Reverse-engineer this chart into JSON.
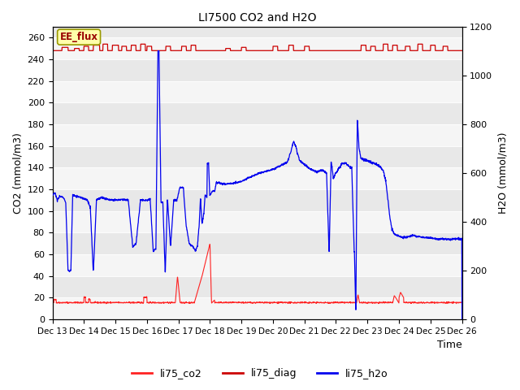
{
  "title": "LI7500 CO2 and H2O",
  "xlabel": "Time",
  "ylabel_left": "CO2 (mmol/m3)",
  "ylabel_right": "H2O (mmol/m3)",
  "ylim_left": [
    0,
    270
  ],
  "ylim_right": [
    0,
    1200
  ],
  "yticks_left": [
    0,
    20,
    40,
    60,
    80,
    100,
    120,
    140,
    160,
    180,
    200,
    220,
    240,
    260
  ],
  "yticks_right": [
    0,
    200,
    400,
    600,
    800,
    1000,
    1200
  ],
  "bg_color": "#e8e8e8",
  "stripe_color": "#f5f5f5",
  "co2_color": "#ff2222",
  "diag_color": "#cc0000",
  "h2o_color": "#0000ee",
  "annotation_text": "EE_flux",
  "annotation_bg": "#ffffaa",
  "annotation_border": "#999900",
  "legend_entries": [
    "li75_co2",
    "li75_diag",
    "li75_h2o"
  ],
  "legend_colors": [
    "#ff2222",
    "#cc0000",
    "#0000ee"
  ],
  "xtick_labels": [
    "Dec 13",
    "Dec 14",
    "Dec 15",
    "Dec 16",
    "Dec 17",
    "Dec 18",
    "Dec 19",
    "Dec 20",
    "Dec 21",
    "Dec 22",
    "Dec 23",
    "Dec 24",
    "Dec 25",
    "Dec 26"
  ],
  "n_points": 2000,
  "figsize": [
    6.4,
    4.8
  ],
  "dpi": 100
}
